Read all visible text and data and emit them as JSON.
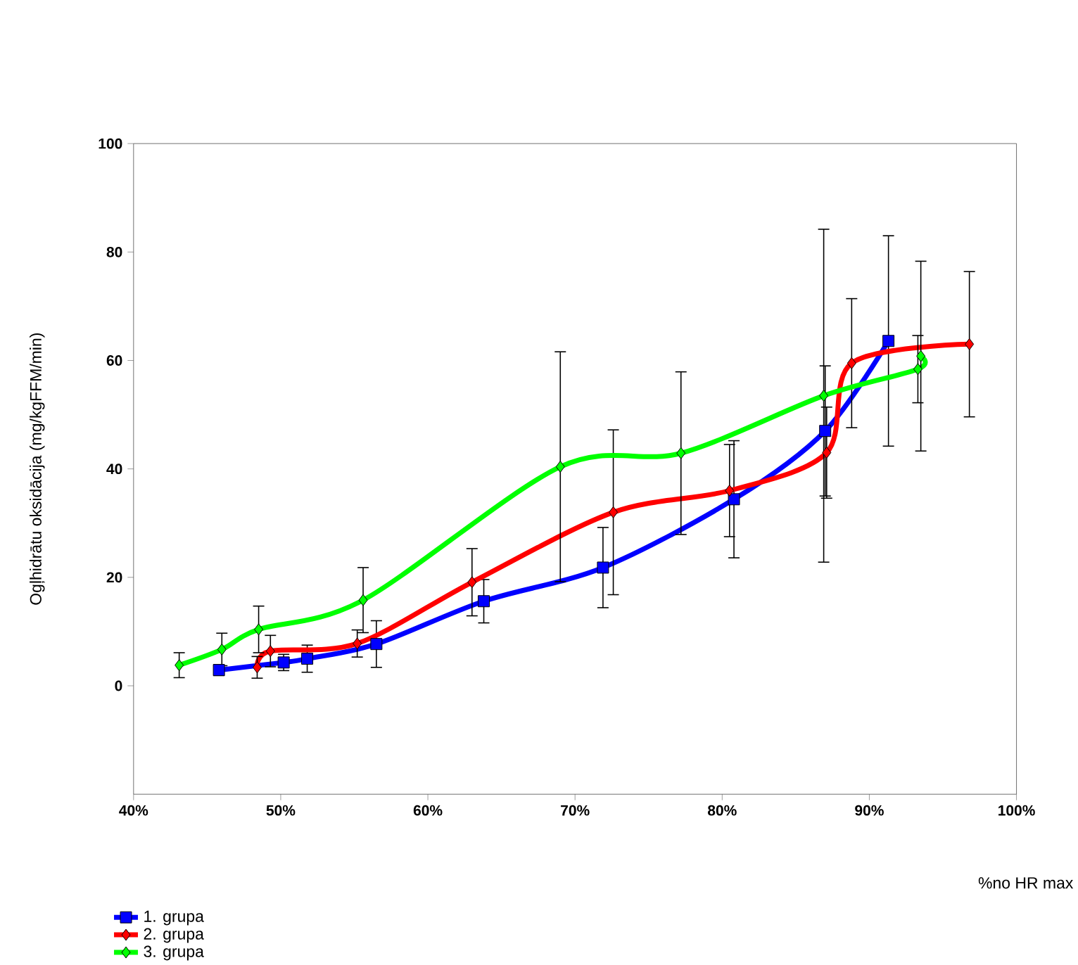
{
  "chart_data": {
    "type": "line",
    "xlabel": "%no HR max",
    "ylabel": "Ogļhidrātu oksidācija (mg/kgFFM/min)",
    "xlim": [
      40,
      100
    ],
    "ylim": [
      -20,
      100
    ],
    "xticks": [
      {
        "value": 40,
        "label": "40%"
      },
      {
        "value": 50,
        "label": "50%"
      },
      {
        "value": 60,
        "label": "60%"
      },
      {
        "value": 70,
        "label": "70%"
      },
      {
        "value": 80,
        "label": "80%"
      },
      {
        "value": 90,
        "label": "90%"
      },
      {
        "value": 100,
        "label": "100%"
      }
    ],
    "yticks": [
      0,
      20,
      40,
      60,
      80,
      100
    ],
    "grid": false,
    "legend": "bottom left",
    "series": [
      {
        "name": "1. grupa",
        "color": "#0000ff",
        "marker": "square",
        "x": [
          45.8,
          50.2,
          51.8,
          56.5,
          63.8,
          71.9,
          80.8,
          87.0,
          91.3
        ],
        "values": [
          2.9,
          4.3,
          5.0,
          7.7,
          15.6,
          21.8,
          34.4,
          47,
          63.6
        ],
        "errors": [
          1,
          1.5,
          2.5,
          4.3,
          4,
          7.4,
          10.8,
          12,
          19.4
        ]
      },
      {
        "name": "2. grupa",
        "color": "#ff0000",
        "marker": "diamond",
        "x": [
          48.4,
          49.3,
          55.2,
          63.0,
          72.6,
          80.5,
          87.1,
          88.8,
          96.8
        ],
        "values": [
          3.4,
          6.4,
          7.8,
          19.1,
          32.0,
          36.0,
          43,
          59.5,
          63.0
        ],
        "errors": [
          2,
          2.9,
          2.5,
          6.2,
          15.2,
          8.5,
          8.4,
          11.9,
          13.4
        ]
      },
      {
        "name": "3. grupa",
        "color": "#00ff00",
        "marker": "diamond",
        "x": [
          43.1,
          46.0,
          48.5,
          55.6,
          69.0,
          77.2,
          86.9,
          93.3,
          93.5
        ],
        "values": [
          3.8,
          6.7,
          10.4,
          15.8,
          40.4,
          42.9,
          53.5,
          58.4,
          60.8
        ],
        "errors": [
          2.3,
          3,
          4.3,
          6,
          21.2,
          15,
          30.7,
          6.2,
          17.5
        ]
      }
    ]
  }
}
